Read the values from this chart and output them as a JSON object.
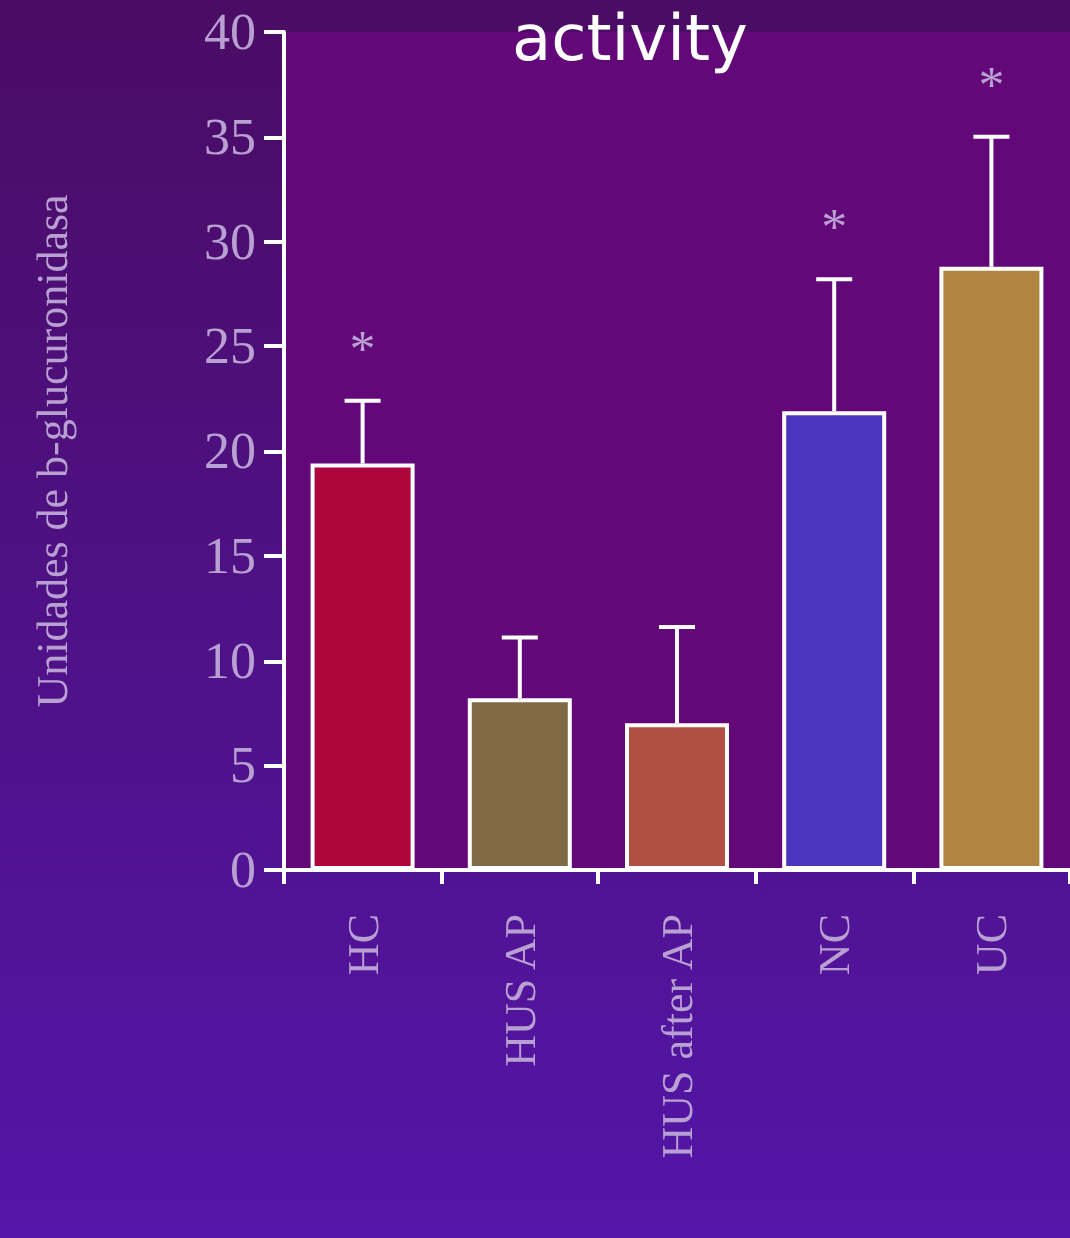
{
  "chart_data": {
    "type": "bar",
    "title": "activity",
    "ylabel": "Unidades de b-glucuronidasa",
    "categories": [
      "HC",
      "HUS AP",
      "HUS after AP",
      "NC",
      "UC"
    ],
    "values": [
      19.4,
      8.2,
      7.0,
      21.9,
      28.8
    ],
    "colors": [
      "#ae063c",
      "#7f6a45",
      "#b05045",
      "#4c36c0",
      "#b08442"
    ],
    "errors": [
      [
        19.4,
        22.4
      ],
      [
        8.2,
        11.1
      ],
      [
        7.0,
        11.6
      ],
      [
        21.9,
        28.2
      ],
      [
        28.8,
        35.0
      ]
    ],
    "ylim": [
      0,
      40
    ],
    "yticks": [
      0,
      5,
      10,
      15,
      20,
      25,
      30,
      35,
      40
    ],
    "grid": false,
    "annotations": [
      {
        "text": "*",
        "x": "HC",
        "y": 22.4
      },
      {
        "text": "*",
        "x": "NC",
        "y": 28.2
      },
      {
        "text": "*",
        "x": "UC",
        "y": 35.0
      }
    ]
  }
}
